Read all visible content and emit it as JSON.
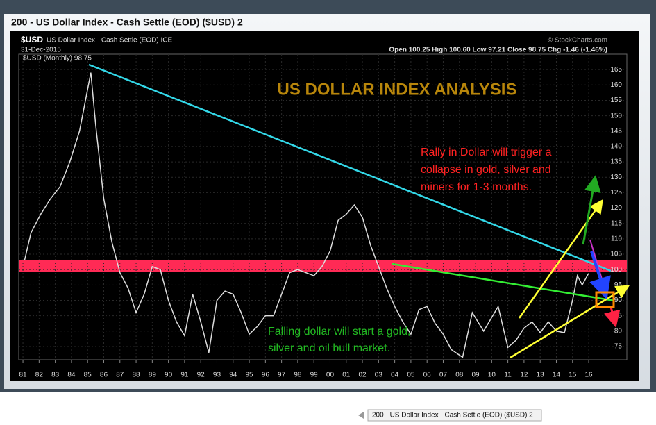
{
  "window_title": "200 - US Dollar Index - Cash Settle (EOD) ($USD) 2",
  "taskbar_tab": "200 - US Dollar Index - Cash Settle (EOD) ($USD) 2",
  "chart_data": {
    "type": "line",
    "symbol": "$USD",
    "subtitle": "US Dollar Index - Cash Settle (EOD) ICE",
    "date": "31-Dec-2015",
    "quote": "Open 100.25 High 100.60 Low 97.21 Close 98.75 Chg -1.46 (-1.46%)",
    "watermark": "© StockCharts.com",
    "annotations": {
      "heading": "US DOLLAR INDEX ANALYSIS",
      "rally": [
        "Rally in Dollar will trigger a",
        "collapse in gold, silver and",
        "miners for 1-3 months."
      ],
      "falling": [
        "Falling dollar will start a gold,",
        "silver and oil bull market."
      ]
    },
    "zone": [
      99.2,
      103.2
    ],
    "zone_color": "#ff2a55",
    "grid": true,
    "xlim": [
      1980.74,
      2018.36
    ],
    "ylim": [
      70.7,
      170
    ],
    "yticks": [
      75,
      80,
      85,
      90,
      95,
      100,
      105,
      110,
      115,
      120,
      125,
      130,
      135,
      140,
      145,
      150,
      155,
      160,
      165
    ],
    "xticks": [
      {
        "value": 1981,
        "label": "81"
      },
      {
        "value": 1982,
        "label": "82"
      },
      {
        "value": 1983,
        "label": "83"
      },
      {
        "value": 1984,
        "label": "84"
      },
      {
        "value": 1985,
        "label": "85"
      },
      {
        "value": 1986,
        "label": "86"
      },
      {
        "value": 1987,
        "label": "87"
      },
      {
        "value": 1988,
        "label": "88"
      },
      {
        "value": 1989,
        "label": "89"
      },
      {
        "value": 1990,
        "label": "90"
      },
      {
        "value": 1991,
        "label": "91"
      },
      {
        "value": 1992,
        "label": "92"
      },
      {
        "value": 1993,
        "label": "93"
      },
      {
        "value": 1994,
        "label": "94"
      },
      {
        "value": 1995,
        "label": "95"
      },
      {
        "value": 1996,
        "label": "96"
      },
      {
        "value": 1997,
        "label": "97"
      },
      {
        "value": 1998,
        "label": "98"
      },
      {
        "value": 1999,
        "label": "99"
      },
      {
        "value": 2000,
        "label": "00"
      },
      {
        "value": 2001,
        "label": "01"
      },
      {
        "value": 2002,
        "label": "02"
      },
      {
        "value": 2003,
        "label": "03"
      },
      {
        "value": 2004,
        "label": "04"
      },
      {
        "value": 2005,
        "label": "05"
      },
      {
        "value": 2006,
        "label": "06"
      },
      {
        "value": 2007,
        "label": "07"
      },
      {
        "value": 2008,
        "label": "08"
      },
      {
        "value": 2009,
        "label": "09"
      },
      {
        "value": 2010,
        "label": "10"
      },
      {
        "value": 2011,
        "label": "11"
      },
      {
        "value": 2012,
        "label": "12"
      },
      {
        "value": 2013,
        "label": "13"
      },
      {
        "value": 2014,
        "label": "14"
      },
      {
        "value": 2015,
        "label": "15"
      },
      {
        "value": 2016,
        "label": "16"
      }
    ],
    "series": [
      {
        "name": "$USD (Monthly) 98.75",
        "color": "#dddddd",
        "x": [
          1981.1,
          1981.5,
          1982.1,
          1982.7,
          1983.3,
          1983.9,
          1984.5,
          1985.2,
          1985.5,
          1986,
          1986.5,
          1987,
          1987.5,
          1988,
          1988.5,
          1989,
          1989.5,
          1990,
          1990.5,
          1991,
          1991.5,
          1992,
          1992.5,
          1993,
          1993.5,
          1994,
          1994.5,
          1995,
          1995.5,
          1996,
          1996.5,
          1997,
          1997.5,
          1998,
          1998.5,
          1999,
          1999.5,
          2000,
          2000.5,
          2001,
          2001.5,
          2002,
          2002.5,
          2003,
          2003.5,
          2004,
          2004.5,
          2005,
          2005.5,
          2006,
          2006.5,
          2007,
          2007.5,
          2008.2,
          2008.8,
          2009.5,
          2010.4,
          2011,
          2011.5,
          2012,
          2012.5,
          2013,
          2013.5,
          2014,
          2014.5,
          2015,
          2015.3,
          2015.6,
          2015.99
        ],
        "values": [
          103,
          112,
          118,
          123,
          127,
          135,
          145,
          164,
          147,
          123,
          109,
          99,
          94,
          86,
          92,
          101,
          100,
          90,
          83,
          78.5,
          92,
          83,
          73,
          90,
          93,
          92,
          86,
          79,
          81.5,
          85,
          85,
          92,
          99,
          100,
          99,
          98,
          101,
          106,
          116,
          118,
          121,
          117,
          108,
          101,
          94,
          88,
          83,
          79,
          87,
          88,
          82.5,
          79,
          74,
          71.5,
          86,
          80,
          88,
          74.7,
          77,
          81,
          83,
          79.5,
          83,
          80,
          79.5,
          90,
          98,
          95,
          98.75
        ]
      }
    ]
  }
}
